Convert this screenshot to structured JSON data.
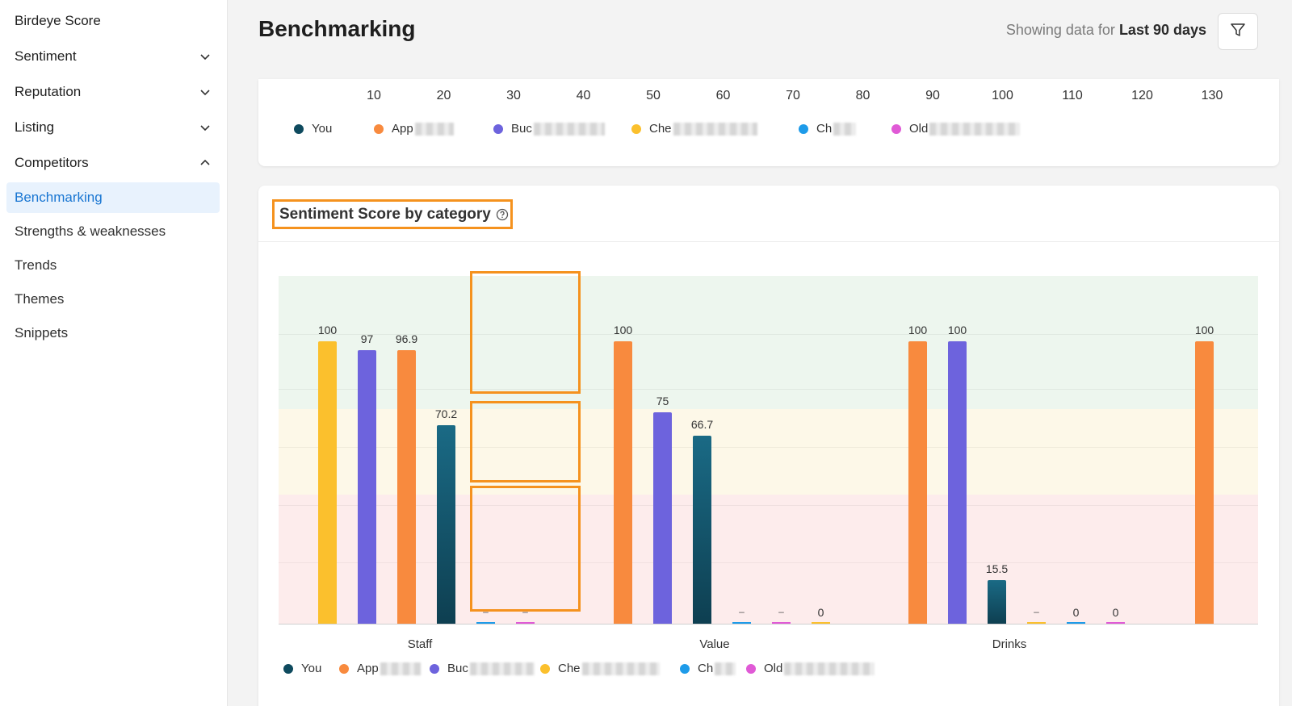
{
  "sidebar": {
    "items": [
      {
        "label": "Birdeye Score"
      },
      {
        "label": "Sentiment"
      },
      {
        "label": "Reputation"
      },
      {
        "label": "Listing"
      },
      {
        "label": "Competitors"
      },
      {
        "label": "Benchmarking"
      },
      {
        "label": "Strengths & weaknesses"
      },
      {
        "label": "Trends"
      },
      {
        "label": "Themes"
      },
      {
        "label": "Snippets"
      }
    ]
  },
  "header": {
    "title": "Benchmarking",
    "range_prefix": "Showing data for",
    "range_value": "Last 90 days",
    "filter_icon": "filter-icon"
  },
  "top_chart": {
    "ticks": [
      "10",
      "20",
      "30",
      "40",
      "50",
      "60",
      "70",
      "80",
      "90",
      "100",
      "110",
      "120",
      "130"
    ],
    "legend": [
      {
        "label": "You",
        "color": "#0e4a5e"
      },
      {
        "label": "App",
        "color": "#f88a3e"
      },
      {
        "label": "Buc",
        "color": "#6d63dd"
      },
      {
        "label": "Che",
        "color": "#fbc02d"
      },
      {
        "label": "Ch",
        "color": "#1e9be9"
      },
      {
        "label": "Old",
        "color": "#e05ad6"
      }
    ]
  },
  "section": {
    "title": "Sentiment Score by category",
    "help_icon": "help-circle-icon"
  },
  "chart_data": {
    "type": "bar",
    "title": "Sentiment Score by category",
    "categories": [
      "Staff",
      "Value",
      "Drinks"
    ],
    "ylim": [
      0,
      100
    ],
    "bands": [
      {
        "range": [
          0,
          45
        ],
        "color": "#fdecec"
      },
      {
        "range": [
          45,
          75
        ],
        "color": "#fdf8e8"
      },
      {
        "range": [
          75,
          100
        ],
        "color": "#edf6ee"
      }
    ],
    "series": [
      {
        "name": "You",
        "color": "#0e4a5e",
        "values": [
          70.2,
          66.7,
          15.5
        ],
        "labels": [
          "70.2",
          "66.7",
          "15.5"
        ]
      },
      {
        "name": "App",
        "color": "#f88a3e",
        "values": [
          96.9,
          100,
          100
        ],
        "labels": [
          "96.9",
          "100",
          "100"
        ]
      },
      {
        "name": "Buc",
        "color": "#6d63dd",
        "values": [
          97,
          75,
          100
        ],
        "labels": [
          "97",
          "75",
          "100"
        ]
      },
      {
        "name": "Che",
        "color": "#fbc02d",
        "values": [
          100,
          0,
          null
        ],
        "labels": [
          "100",
          "0",
          "–"
        ]
      },
      {
        "name": "Ch",
        "color": "#1e9be9",
        "values": [
          null,
          null,
          0
        ],
        "labels": [
          "–",
          "–",
          "0"
        ]
      },
      {
        "name": "Old",
        "color": "#e05ad6",
        "values": [
          null,
          null,
          0
        ],
        "labels": [
          "–",
          "–",
          "0"
        ]
      }
    ],
    "extra_bar_label": "100"
  }
}
